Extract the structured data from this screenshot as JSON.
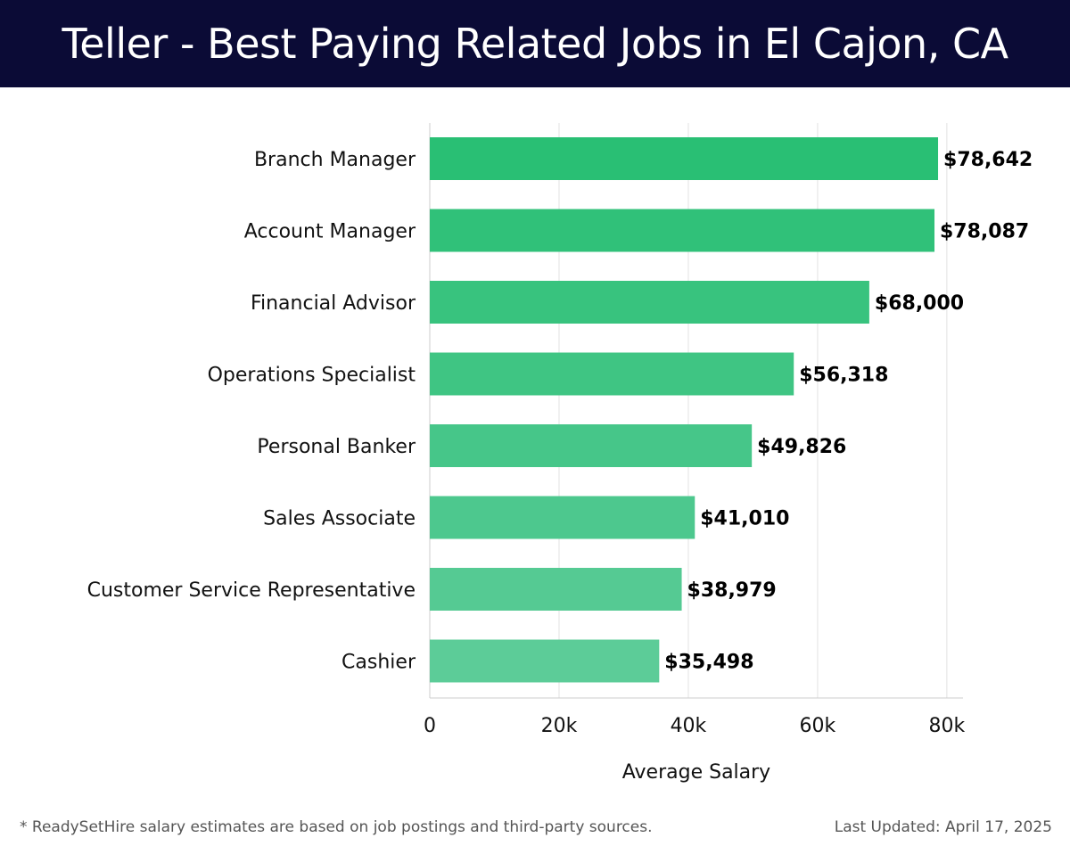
{
  "header": {
    "title": "Teller - Best Paying Related Jobs in El Cajon, CA"
  },
  "chart_data": {
    "type": "bar",
    "orientation": "horizontal",
    "categories": [
      "Branch Manager",
      "Account Manager",
      "Financial Advisor",
      "Operations Specialist",
      "Personal Banker",
      "Sales Associate",
      "Customer Service Representative",
      "Cashier"
    ],
    "values": [
      78642,
      78087,
      68000,
      56318,
      49826,
      41010,
      38979,
      35498
    ],
    "value_labels": [
      "$78,642",
      "$78,087",
      "$68,000",
      "$56,318",
      "$49,826",
      "$41,010",
      "$38,979",
      "$35,498"
    ],
    "xlabel": "Average Salary",
    "ylabel": "",
    "xlim": [
      0,
      82500
    ],
    "x_ticks": [
      0,
      20000,
      40000,
      60000,
      80000
    ],
    "x_tick_labels": [
      "0",
      "20k",
      "40k",
      "60k",
      "80k"
    ],
    "grid": true,
    "bar_color_top": "#29bf74",
    "bar_color_bottom": "#5ccc98"
  },
  "footer": {
    "note": "* ReadySetHire salary estimates are based on job postings and third-party sources.",
    "updated": "Last Updated: April 17, 2025"
  }
}
